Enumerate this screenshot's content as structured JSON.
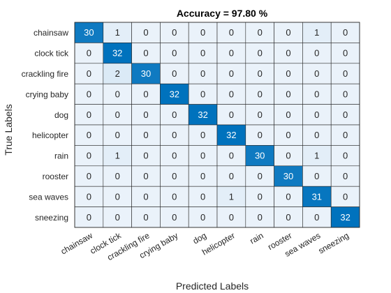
{
  "chart_data": {
    "type": "heatmap",
    "title": "Accuracy = 97.80 %",
    "xlabel": "Predicted Labels",
    "ylabel": "True Labels",
    "x_categories": [
      "chainsaw",
      "clock tick",
      "crackling fire",
      "crying baby",
      "dog",
      "helicopter",
      "rain",
      "rooster",
      "sea waves",
      "sneezing"
    ],
    "y_categories": [
      "chainsaw",
      "clock tick",
      "crackling fire",
      "crying baby",
      "dog",
      "helicopter",
      "rain",
      "rooster",
      "sea waves",
      "sneezing"
    ],
    "values": [
      [
        30,
        1,
        0,
        0,
        0,
        0,
        0,
        0,
        1,
        0
      ],
      [
        0,
        32,
        0,
        0,
        0,
        0,
        0,
        0,
        0,
        0
      ],
      [
        0,
        2,
        30,
        0,
        0,
        0,
        0,
        0,
        0,
        0
      ],
      [
        0,
        0,
        0,
        32,
        0,
        0,
        0,
        0,
        0,
        0
      ],
      [
        0,
        0,
        0,
        0,
        32,
        0,
        0,
        0,
        0,
        0
      ],
      [
        0,
        0,
        0,
        0,
        0,
        32,
        0,
        0,
        0,
        0
      ],
      [
        0,
        1,
        0,
        0,
        0,
        0,
        30,
        0,
        1,
        0
      ],
      [
        0,
        0,
        0,
        0,
        0,
        0,
        0,
        30,
        0,
        0
      ],
      [
        0,
        0,
        0,
        0,
        0,
        1,
        0,
        0,
        31,
        0
      ],
      [
        0,
        0,
        0,
        0,
        0,
        0,
        0,
        0,
        0,
        32
      ]
    ],
    "colors": {
      "low": "#eaf2fa",
      "high": "#0072bd",
      "grid": "#262626",
      "text_dark": "#262626",
      "text_light": "#ffffff"
    }
  }
}
